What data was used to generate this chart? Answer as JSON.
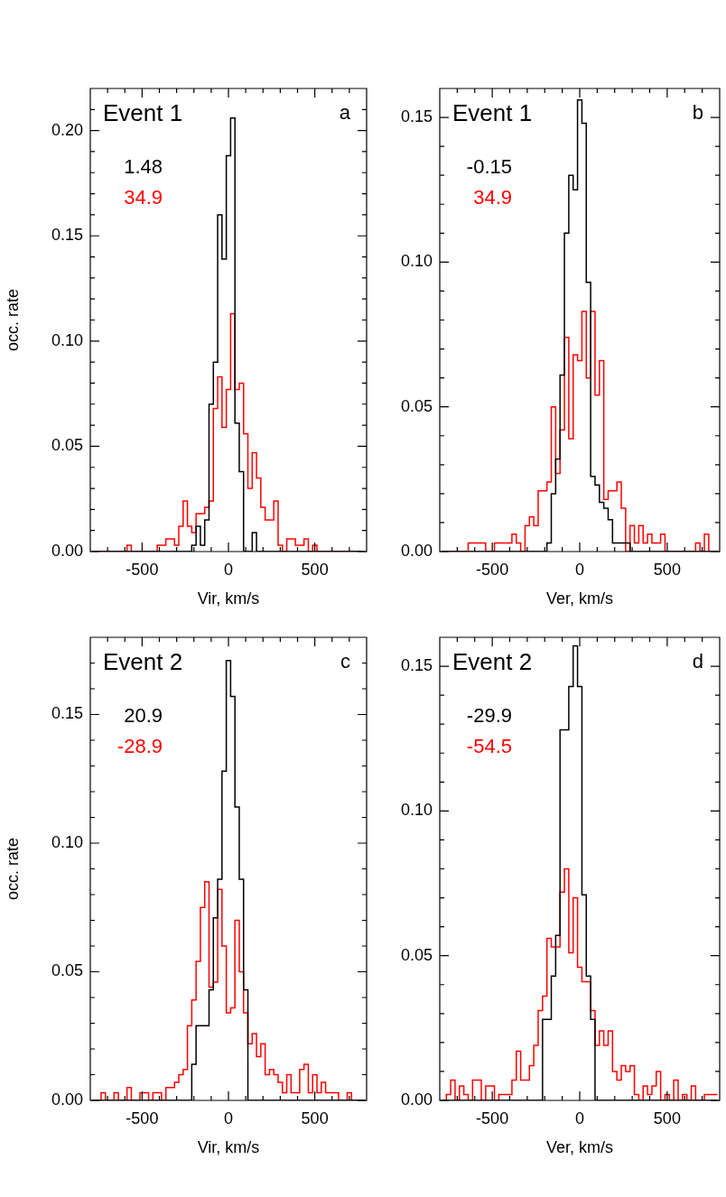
{
  "chart_data": [
    {
      "type": "histogram",
      "title": "Event 1",
      "xlabel": "Vir, km/s",
      "ylabel": "occ. rate",
      "annotations": [
        "a",
        "1.48",
        "34.9"
      ],
      "bins": [
        -787.5,
        -762.5,
        -737.5,
        -712.5,
        -687.5,
        -662.5,
        -637.5,
        -612.5,
        -587.5,
        -562.5,
        -537.5,
        -512.5,
        -487.5,
        -462.5,
        -437.5,
        -412.5,
        -387.5,
        -362.5,
        -337.5,
        -312.5,
        -287.5,
        -262.5,
        -237.5,
        -212.5,
        -187.5,
        -162.5,
        -137.5,
        -112.5,
        -87.5,
        -62.5,
        -37.5,
        -12.5,
        12.5,
        37.5,
        62.5,
        87.5,
        112.5,
        137.5,
        162.5,
        187.5,
        212.5,
        237.5,
        262.5,
        287.5,
        312.5,
        337.5,
        362.5,
        387.5,
        412.5,
        437.5,
        462.5,
        487.5,
        512.5,
        537.5,
        562.5,
        587.5,
        612.5,
        637.5,
        662.5,
        687.5,
        712.5,
        737.5,
        762.5,
        787.5
      ],
      "series": [
        {
          "color": "#000000",
          "values": [
            0,
            0,
            0,
            0,
            0,
            0,
            0,
            0,
            0,
            0,
            0,
            0,
            0,
            0,
            0,
            0,
            0,
            0,
            0,
            0,
            0,
            0,
            0,
            0.003,
            0.012,
            0.003,
            0.015,
            0.07,
            0.09,
            0.16,
            0.139,
            0.188,
            0.206,
            0.061,
            0.038,
            0,
            0,
            0.009,
            0,
            0,
            0,
            0,
            0,
            0,
            0,
            0,
            0,
            0,
            0,
            0,
            0,
            0,
            0,
            0,
            0,
            0,
            0,
            0,
            0,
            0,
            0,
            0,
            0
          ]
        },
        {
          "color": "#ff0000",
          "values": [
            0,
            0,
            0,
            0,
            0,
            0,
            0,
            0,
            0.003,
            0,
            0,
            0,
            0,
            0,
            0,
            0.003,
            0.003,
            0.006,
            0.006,
            0.003,
            0.012,
            0.024,
            0.012,
            0.009,
            0.018,
            0.018,
            0.021,
            0.024,
            0.068,
            0.083,
            0.059,
            0.077,
            0.113,
            0.077,
            0.08,
            0.056,
            0.03,
            0.047,
            0.035,
            0.021,
            0.015,
            0.015,
            0.024,
            0.003,
            0,
            0.006,
            0.006,
            0.003,
            0.003,
            0.006,
            0,
            0.003,
            0,
            0,
            0,
            0,
            0,
            0,
            0,
            0,
            0,
            0,
            0
          ]
        }
      ],
      "xlim": [
        -800,
        800
      ],
      "xticks": [
        {
          "value": -700,
          "label": null
        },
        {
          "value": -600,
          "label": null
        },
        -500,
        {
          "value": -400,
          "label": null
        },
        {
          "value": -300,
          "label": null
        },
        {
          "value": -200,
          "label": null
        },
        {
          "value": -100,
          "label": null
        },
        0,
        {
          "value": 100,
          "label": null
        },
        {
          "value": 200,
          "label": null
        },
        {
          "value": 300,
          "label": null
        },
        {
          "value": 400,
          "label": null
        },
        500,
        {
          "value": 600,
          "label": null
        },
        {
          "value": 700,
          "label": null
        }
      ],
      "ylim": [
        0,
        0.22
      ],
      "yticks": [
        {
          "value": 0,
          "label": "0.00"
        },
        {
          "value": 0.01,
          "label": null
        },
        {
          "value": 0.02,
          "label": null
        },
        {
          "value": 0.03,
          "label": null
        },
        {
          "value": 0.04,
          "label": null
        },
        {
          "value": 0.05,
          "label": "0.05"
        },
        {
          "value": 0.06,
          "label": null
        },
        {
          "value": 0.07,
          "label": null
        },
        {
          "value": 0.08,
          "label": null
        },
        {
          "value": 0.09,
          "label": null
        },
        {
          "value": 0.1,
          "label": "0.10"
        },
        {
          "value": 0.11,
          "label": null
        },
        {
          "value": 0.12,
          "label": null
        },
        {
          "value": 0.13,
          "label": null
        },
        {
          "value": 0.14,
          "label": null
        },
        {
          "value": 0.15,
          "label": "0.15"
        },
        {
          "value": 0.16,
          "label": null
        },
        {
          "value": 0.17,
          "label": null
        },
        {
          "value": 0.18,
          "label": null
        },
        {
          "value": 0.19,
          "label": null
        },
        {
          "value": 0.2,
          "label": "0.20"
        },
        {
          "value": 0.21,
          "label": null
        }
      ],
      "grid": false,
      "legend": false
    },
    {
      "type": "histogram",
      "title": "Event 1",
      "xlabel": "Ver, km/s",
      "annotations": [
        "b",
        "-0.15",
        "34.9"
      ],
      "bins": [
        -787.5,
        -762.5,
        -737.5,
        -712.5,
        -687.5,
        -662.5,
        -637.5,
        -612.5,
        -587.5,
        -562.5,
        -537.5,
        -512.5,
        -487.5,
        -462.5,
        -437.5,
        -412.5,
        -387.5,
        -362.5,
        -337.5,
        -312.5,
        -287.5,
        -262.5,
        -237.5,
        -212.5,
        -187.5,
        -162.5,
        -137.5,
        -112.5,
        -87.5,
        -62.5,
        -37.5,
        -12.5,
        12.5,
        37.5,
        62.5,
        87.5,
        112.5,
        137.5,
        162.5,
        187.5,
        212.5,
        237.5,
        262.5,
        287.5,
        312.5,
        337.5,
        362.5,
        387.5,
        412.5,
        437.5,
        462.5,
        487.5,
        512.5,
        537.5,
        562.5,
        587.5,
        612.5,
        637.5,
        662.5,
        687.5,
        712.5,
        737.5,
        762.5,
        787.5
      ],
      "series": [
        {
          "color": "#000000",
          "values": [
            0,
            0,
            0,
            0,
            0,
            0,
            0,
            0,
            0,
            0,
            0,
            0,
            0,
            0,
            0,
            0,
            0,
            0,
            0,
            0,
            0,
            0,
            0,
            0,
            0.003,
            0.02,
            0.032,
            0.061,
            0.11,
            0.13,
            0.125,
            0.156,
            0.148,
            0.093,
            0.026,
            0.023,
            0.017,
            0.015,
            0.011,
            0.003,
            0.003,
            0.003,
            0.003,
            0,
            0,
            0,
            0,
            0,
            0,
            0,
            0,
            0,
            0,
            0,
            0,
            0,
            0,
            0,
            0,
            0,
            0,
            0,
            0
          ]
        },
        {
          "color": "#ff0000",
          "values": [
            0,
            0,
            0,
            0,
            0,
            0,
            0.003,
            0.003,
            0.003,
            0.003,
            0,
            0,
            0.003,
            0.003,
            0.003,
            0.003,
            0.006,
            0.003,
            0,
            0.009,
            0.012,
            0.009,
            0.021,
            0.021,
            0.024,
            0.05,
            0.027,
            0.042,
            0.074,
            0.039,
            0.068,
            0.066,
            0.083,
            0.06,
            0.083,
            0.054,
            0.066,
            0.018,
            0.021,
            0.021,
            0.024,
            0.015,
            0,
            0.009,
            0.003,
            0.009,
            0.003,
            0.006,
            0.003,
            0.003,
            0.006,
            0,
            0,
            0,
            0,
            0,
            0,
            0,
            0.003,
            0,
            0.006,
            0,
            0
          ]
        }
      ],
      "xlim": [
        -800,
        800
      ],
      "xticks": [
        {
          "value": -700,
          "label": null
        },
        {
          "value": -600,
          "label": null
        },
        -500,
        {
          "value": -400,
          "label": null
        },
        {
          "value": -300,
          "label": null
        },
        {
          "value": -200,
          "label": null
        },
        {
          "value": -100,
          "label": null
        },
        0,
        {
          "value": 100,
          "label": null
        },
        {
          "value": 200,
          "label": null
        },
        {
          "value": 300,
          "label": null
        },
        {
          "value": 400,
          "label": null
        },
        500,
        {
          "value": 600,
          "label": null
        },
        {
          "value": 700,
          "label": null
        }
      ],
      "ylim": [
        0,
        0.16
      ],
      "yticks": [
        {
          "value": 0,
          "label": "0.00"
        },
        {
          "value": 0.01,
          "label": null
        },
        {
          "value": 0.02,
          "label": null
        },
        {
          "value": 0.03,
          "label": null
        },
        {
          "value": 0.04,
          "label": null
        },
        {
          "value": 0.05,
          "label": "0.05"
        },
        {
          "value": 0.06,
          "label": null
        },
        {
          "value": 0.07,
          "label": null
        },
        {
          "value": 0.08,
          "label": null
        },
        {
          "value": 0.09,
          "label": null
        },
        {
          "value": 0.1,
          "label": "0.10"
        },
        {
          "value": 0.11,
          "label": null
        },
        {
          "value": 0.12,
          "label": null
        },
        {
          "value": 0.13,
          "label": null
        },
        {
          "value": 0.14,
          "label": null
        },
        {
          "value": 0.15,
          "label": "0.15"
        }
      ],
      "grid": false,
      "legend": false
    },
    {
      "type": "histogram",
      "title": "Event 2",
      "xlabel": "Vir, km/s",
      "ylabel": "occ. rate",
      "annotations": [
        "c",
        "20.9",
        "-28.9"
      ],
      "bins": [
        -787.5,
        -762.5,
        -737.5,
        -712.5,
        -687.5,
        -662.5,
        -637.5,
        -612.5,
        -587.5,
        -562.5,
        -537.5,
        -512.5,
        -487.5,
        -462.5,
        -437.5,
        -412.5,
        -387.5,
        -362.5,
        -337.5,
        -312.5,
        -287.5,
        -262.5,
        -237.5,
        -212.5,
        -187.5,
        -162.5,
        -137.5,
        -112.5,
        -87.5,
        -62.5,
        -37.5,
        -12.5,
        12.5,
        37.5,
        62.5,
        87.5,
        112.5,
        137.5,
        162.5,
        187.5,
        212.5,
        237.5,
        262.5,
        287.5,
        312.5,
        337.5,
        362.5,
        387.5,
        412.5,
        437.5,
        462.5,
        487.5,
        512.5,
        537.5,
        562.5,
        587.5,
        612.5,
        637.5,
        662.5,
        687.5,
        712.5,
        737.5,
        762.5,
        787.5
      ],
      "series": [
        {
          "color": "#000000",
          "values": [
            0,
            0,
            0,
            0,
            0,
            0,
            0,
            0,
            0,
            0,
            0,
            0,
            0,
            0,
            0,
            0,
            0,
            0,
            0,
            0,
            0,
            0,
            0,
            0.014,
            0.029,
            0.029,
            0.029,
            0.043,
            0.071,
            0.086,
            0.128,
            0.171,
            0.157,
            0.114,
            0.086,
            0.043,
            0,
            0,
            0,
            0,
            0,
            0,
            0,
            0,
            0,
            0,
            0,
            0,
            0,
            0,
            0,
            0,
            0,
            0,
            0,
            0,
            0,
            0,
            0,
            0,
            0,
            0,
            0
          ]
        },
        {
          "color": "#ff0000",
          "values": [
            0,
            0,
            0.003,
            0,
            0,
            0.003,
            0,
            0,
            0.005,
            0,
            0,
            0.003,
            0.003,
            0,
            0.003,
            0.003,
            0,
            0.005,
            0.005,
            0.007,
            0.01,
            0.012,
            0.029,
            0.039,
            0.054,
            0.075,
            0.085,
            0.044,
            0.046,
            0.082,
            0.06,
            0.034,
            0.036,
            0.07,
            0.05,
            0.034,
            0.022,
            0.026,
            0.017,
            0.022,
            0.01,
            0.012,
            0.01,
            0.007,
            0.003,
            0.01,
            0.003,
            0.003,
            0.012,
            0.014,
            0.003,
            0.01,
            0.003,
            0.007,
            0.003,
            0.003,
            0.003,
            0,
            0,
            0.003,
            0,
            0,
            0
          ]
        }
      ],
      "xlim": [
        -800,
        800
      ],
      "xticks": [
        {
          "value": -700,
          "label": null
        },
        {
          "value": -600,
          "label": null
        },
        -500,
        {
          "value": -400,
          "label": null
        },
        {
          "value": -300,
          "label": null
        },
        {
          "value": -200,
          "label": null
        },
        {
          "value": -100,
          "label": null
        },
        0,
        {
          "value": 100,
          "label": null
        },
        {
          "value": 200,
          "label": null
        },
        {
          "value": 300,
          "label": null
        },
        {
          "value": 400,
          "label": null
        },
        500,
        {
          "value": 600,
          "label": null
        },
        {
          "value": 700,
          "label": null
        }
      ],
      "ylim": [
        0,
        0.18
      ],
      "yticks": [
        {
          "value": 0,
          "label": "0.00"
        },
        {
          "value": 0.01,
          "label": null
        },
        {
          "value": 0.02,
          "label": null
        },
        {
          "value": 0.03,
          "label": null
        },
        {
          "value": 0.04,
          "label": null
        },
        {
          "value": 0.05,
          "label": "0.05"
        },
        {
          "value": 0.06,
          "label": null
        },
        {
          "value": 0.07,
          "label": null
        },
        {
          "value": 0.08,
          "label": null
        },
        {
          "value": 0.09,
          "label": null
        },
        {
          "value": 0.1,
          "label": "0.10"
        },
        {
          "value": 0.11,
          "label": null
        },
        {
          "value": 0.12,
          "label": null
        },
        {
          "value": 0.13,
          "label": null
        },
        {
          "value": 0.14,
          "label": null
        },
        {
          "value": 0.15,
          "label": "0.15"
        },
        {
          "value": 0.16,
          "label": null
        },
        {
          "value": 0.17,
          "label": null
        }
      ],
      "grid": false,
      "legend": false
    },
    {
      "type": "histogram",
      "title": "Event 2",
      "xlabel": "Ver, km/s",
      "annotations": [
        "d",
        "-29.9",
        "-54.5"
      ],
      "bins": [
        -787.5,
        -762.5,
        -737.5,
        -712.5,
        -687.5,
        -662.5,
        -637.5,
        -612.5,
        -587.5,
        -562.5,
        -537.5,
        -512.5,
        -487.5,
        -462.5,
        -437.5,
        -412.5,
        -387.5,
        -362.5,
        -337.5,
        -312.5,
        -287.5,
        -262.5,
        -237.5,
        -212.5,
        -187.5,
        -162.5,
        -137.5,
        -112.5,
        -87.5,
        -62.5,
        -37.5,
        -12.5,
        12.5,
        37.5,
        62.5,
        87.5,
        112.5,
        137.5,
        162.5,
        187.5,
        212.5,
        237.5,
        262.5,
        287.5,
        312.5,
        337.5,
        362.5,
        387.5,
        412.5,
        437.5,
        462.5,
        487.5,
        512.5,
        537.5,
        562.5,
        587.5,
        612.5,
        637.5,
        662.5,
        687.5,
        712.5,
        737.5,
        762.5,
        787.5
      ],
      "series": [
        {
          "color": "#000000",
          "values": [
            0,
            0,
            0,
            0,
            0,
            0,
            0,
            0,
            0,
            0,
            0,
            0,
            0,
            0,
            0,
            0,
            0,
            0,
            0,
            0,
            0,
            0,
            0,
            0.028,
            0.028,
            0.043,
            0.057,
            0.128,
            0.128,
            0.143,
            0.157,
            0.143,
            0.071,
            0.043,
            0.028,
            0,
            0,
            0,
            0,
            0,
            0,
            0,
            0,
            0,
            0,
            0,
            0,
            0,
            0,
            0,
            0,
            0,
            0,
            0,
            0,
            0,
            0,
            0,
            0,
            0,
            0,
            0,
            0
          ]
        },
        {
          "color": "#ff0000",
          "values": [
            0,
            0.002,
            0.007,
            0,
            0.005,
            0.002,
            0,
            0.007,
            0.007,
            0,
            0.005,
            0.005,
            0,
            0.002,
            0.002,
            0.002,
            0.007,
            0.017,
            0.007,
            0.007,
            0.012,
            0.019,
            0.031,
            0.036,
            0.056,
            0.053,
            0.053,
            0.072,
            0.08,
            0.051,
            0.07,
            0.046,
            0.041,
            0.041,
            0.031,
            0.019,
            0.024,
            0.019,
            0.024,
            0.01,
            0.007,
            0.012,
            0.01,
            0.012,
            0.002,
            0,
            0.005,
            0.002,
            0.005,
            0.01,
            0,
            0.002,
            0,
            0.007,
            0,
            0.002,
            0,
            0.005,
            0,
            0,
            0.002,
            0.002,
            0.002
          ]
        }
      ],
      "xlim": [
        -800,
        800
      ],
      "xticks": [
        {
          "value": -700,
          "label": null
        },
        {
          "value": -600,
          "label": null
        },
        -500,
        {
          "value": -400,
          "label": null
        },
        {
          "value": -300,
          "label": null
        },
        {
          "value": -200,
          "label": null
        },
        {
          "value": -100,
          "label": null
        },
        0,
        {
          "value": 100,
          "label": null
        },
        {
          "value": 200,
          "label": null
        },
        {
          "value": 300,
          "label": null
        },
        {
          "value": 400,
          "label": null
        },
        500,
        {
          "value": 600,
          "label": null
        },
        {
          "value": 700,
          "label": null
        }
      ],
      "ylim": [
        0,
        0.16
      ],
      "yticks": [
        {
          "value": 0,
          "label": "0.00"
        },
        {
          "value": 0.01,
          "label": null
        },
        {
          "value": 0.02,
          "label": null
        },
        {
          "value": 0.03,
          "label": null
        },
        {
          "value": 0.04,
          "label": null
        },
        {
          "value": 0.05,
          "label": "0.05"
        },
        {
          "value": 0.06,
          "label": null
        },
        {
          "value": 0.07,
          "label": null
        },
        {
          "value": 0.08,
          "label": null
        },
        {
          "value": 0.09,
          "label": null
        },
        {
          "value": 0.1,
          "label": "0.10"
        },
        {
          "value": 0.11,
          "label": null
        },
        {
          "value": 0.12,
          "label": null
        },
        {
          "value": 0.13,
          "label": null
        },
        {
          "value": 0.14,
          "label": null
        },
        {
          "value": 0.15,
          "label": "0.15"
        }
      ],
      "grid": false,
      "legend": false
    }
  ]
}
